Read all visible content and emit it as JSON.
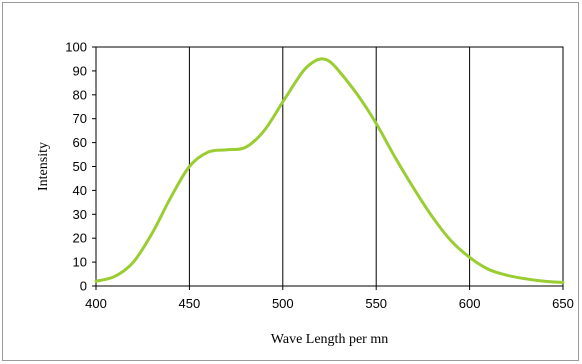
{
  "chart_data": {
    "type": "line",
    "title": "",
    "xlabel": "Wave Length per mn",
    "ylabel": "Intensity",
    "xlim": [
      400,
      650
    ],
    "ylim": [
      0,
      100
    ],
    "x_ticks": [
      "400",
      "450",
      "500",
      "550",
      "600",
      "650"
    ],
    "y_ticks": [
      "0",
      "10",
      "20",
      "30",
      "40",
      "50",
      "60",
      "70",
      "80",
      "90",
      "100"
    ],
    "grid": "vertical",
    "legend": "none",
    "series": [
      {
        "color": "#9acd32",
        "x": [
          400,
          410,
          420,
          430,
          440,
          450,
          460,
          470,
          480,
          490,
          500,
          510,
          515,
          520,
          525,
          530,
          540,
          550,
          560,
          570,
          580,
          590,
          600,
          610,
          620,
          630,
          640,
          650
        ],
        "y": [
          2,
          4,
          10,
          22,
          37,
          50,
          56,
          57,
          58,
          65,
          77,
          89,
          93,
          95,
          94,
          90,
          80,
          68,
          54,
          41,
          29,
          19,
          12,
          7,
          4.5,
          3,
          2,
          1.5
        ]
      }
    ]
  }
}
